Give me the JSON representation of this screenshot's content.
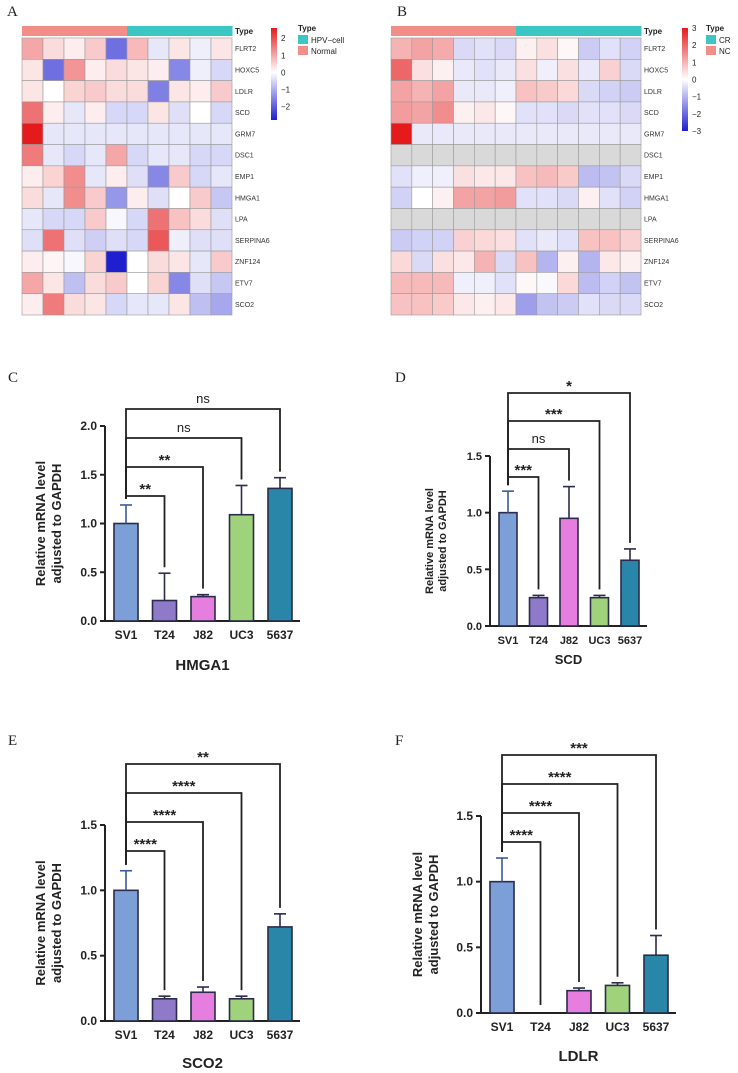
{
  "chart_data": [
    {
      "panel": "A",
      "type": "heatmap",
      "title": "",
      "rows": [
        "FLRT2",
        "HOXC5",
        "LDLR",
        "SCD",
        "GRM7",
        "DSC1",
        "EMP1",
        "HMGA1",
        "LPA",
        "SERPINA6",
        "ZNF124",
        "ETV7",
        "SCO2"
      ],
      "column_groups": [
        "Normal",
        "Normal",
        "Normal",
        "Normal",
        "Normal",
        "HPV-cell",
        "HPV-cell",
        "HPV-cell",
        "HPV-cell",
        "HPV-cell"
      ],
      "values": [
        [
          1.0,
          0.4,
          0.2,
          0.6,
          -1.8,
          0.8,
          -0.3,
          0.3,
          -0.2,
          0.3
        ],
        [
          0.3,
          -1.8,
          1.2,
          0.2,
          0.4,
          0.3,
          0.2,
          -1.5,
          -0.2,
          -0.5
        ],
        [
          0.3,
          0.0,
          0.5,
          0.6,
          0.4,
          0.4,
          -1.6,
          0.3,
          0.2,
          0.6
        ],
        [
          1.6,
          0.2,
          -0.3,
          0.2,
          -0.5,
          -0.5,
          0.3,
          -0.4,
          0.0,
          -0.5
        ],
        [
          2.6,
          -0.3,
          -0.3,
          -0.3,
          -0.3,
          -0.3,
          -0.3,
          -0.3,
          -0.3,
          -0.3
        ],
        [
          1.5,
          -0.3,
          -0.5,
          -0.3,
          1.0,
          -0.5,
          -0.3,
          -0.3,
          -0.5,
          -0.5
        ],
        [
          0.2,
          0.5,
          1.3,
          -0.3,
          0.2,
          -0.4,
          -1.5,
          0.6,
          -0.5,
          -0.3
        ],
        [
          0.4,
          -0.3,
          1.3,
          0.6,
          -1.3,
          0.2,
          -0.4,
          0.0,
          0.6,
          -0.7
        ],
        [
          -0.3,
          -0.5,
          -0.5,
          0.6,
          -0.1,
          -0.5,
          1.6,
          0.7,
          0.4,
          -0.4
        ],
        [
          -0.4,
          1.6,
          -0.4,
          -0.6,
          -0.4,
          -0.5,
          1.9,
          -0.2,
          -0.4,
          -0.4
        ],
        [
          0.2,
          0.1,
          -0.1,
          0.5,
          -2.8,
          0.0,
          0.4,
          0.3,
          -0.3,
          0.6
        ],
        [
          1.0,
          0.3,
          -0.8,
          0.4,
          0.6,
          0.0,
          0.5,
          -1.5,
          -0.4,
          -0.7
        ],
        [
          0.2,
          1.5,
          0.4,
          0.3,
          -0.5,
          -0.3,
          -0.3,
          0.3,
          -0.8,
          -1.1
        ]
      ],
      "legend": {
        "title": "Type",
        "entries": [
          {
            "label": "HPV−cell",
            "color": "#3cc7c4"
          },
          {
            "label": "Normal",
            "color": "#f28d87"
          }
        ]
      },
      "colorbar": {
        "min": -2.8,
        "max": 2.6,
        "ticks": [
          "2",
          "1",
          "0",
          "−1",
          "−2"
        ],
        "tick_values": [
          2,
          1,
          0,
          -1,
          -2
        ]
      },
      "type_label": "Type"
    },
    {
      "panel": "B",
      "type": "heatmap",
      "title": "",
      "rows": [
        "FLRT2",
        "HOXC5",
        "LDLR",
        "SCD",
        "GRM7",
        "DSC1",
        "EMP1",
        "HMGA1",
        "LPA",
        "SERPINA6",
        "ZNF124",
        "ETV7",
        "SCO2"
      ],
      "column_groups": [
        "NC",
        "NC",
        "NC",
        "NC",
        "NC",
        "NC",
        "CR",
        "CR",
        "CR",
        "CR",
        "CR",
        "CR"
      ],
      "values": [
        [
          1.0,
          1.2,
          1.1,
          -0.5,
          -0.4,
          -0.5,
          0.2,
          0.4,
          0.1,
          -0.7,
          -0.4,
          -0.6
        ],
        [
          2.0,
          0.4,
          0.2,
          -0.3,
          -0.4,
          -0.3,
          0.4,
          -0.2,
          0.4,
          -0.3,
          0.6,
          -0.5
        ],
        [
          1.2,
          1.0,
          1.2,
          -0.3,
          -0.3,
          -0.2,
          0.8,
          0.7,
          0.5,
          -0.5,
          -0.6,
          -0.7
        ],
        [
          1.3,
          1.2,
          1.5,
          0.2,
          0.3,
          0.1,
          -0.4,
          -0.4,
          -0.5,
          -0.4,
          -0.4,
          -0.5
        ],
        [
          3.0,
          -0.3,
          -0.3,
          -0.3,
          -0.3,
          -0.3,
          -0.3,
          -0.3,
          -0.3,
          -0.3,
          -0.3,
          -0.3
        ],
        [
          null,
          null,
          null,
          null,
          null,
          null,
          null,
          null,
          null,
          null,
          null,
          null
        ],
        [
          -0.4,
          -0.2,
          -0.2,
          0.4,
          0.3,
          0.3,
          0.8,
          0.9,
          0.7,
          -0.9,
          -0.8,
          -0.5
        ],
        [
          -0.6,
          0.0,
          0.2,
          1.2,
          1.2,
          1.3,
          -0.4,
          -0.4,
          -0.5,
          0.2,
          -0.4,
          -0.6
        ],
        [
          null,
          null,
          null,
          null,
          null,
          null,
          null,
          null,
          null,
          null,
          null,
          null
        ],
        [
          -0.7,
          -0.6,
          -0.6,
          0.6,
          0.5,
          0.4,
          -0.4,
          -0.3,
          -0.4,
          0.8,
          0.8,
          0.6
        ],
        [
          0.5,
          -0.5,
          0.4,
          0.3,
          1.0,
          -0.5,
          0.8,
          -1.0,
          0.2,
          -1.0,
          0.3,
          0.2
        ],
        [
          0.9,
          0.9,
          0.9,
          -0.2,
          -0.2,
          -0.4,
          0.1,
          -0.1,
          0.5,
          -0.9,
          -0.6,
          -0.8
        ],
        [
          0.8,
          0.8,
          0.7,
          0.3,
          0.2,
          0.3,
          -1.3,
          -0.8,
          -0.7,
          -0.4,
          -0.5,
          -0.5
        ]
      ],
      "legend": {
        "title": "Type",
        "entries": [
          {
            "label": "CR",
            "color": "#3cc7c4"
          },
          {
            "label": "NC",
            "color": "#f28d87"
          }
        ]
      },
      "colorbar": {
        "min": -3,
        "max": 3,
        "ticks": [
          "3",
          "2",
          "1",
          "0",
          "−1",
          "−2",
          "−3"
        ],
        "tick_values": [
          3,
          2,
          1,
          0,
          -1,
          -2,
          -3
        ]
      },
      "type_label": "Type"
    },
    {
      "panel": "C",
      "type": "bar",
      "xlabel": "HMGA1",
      "ylabel": "Relative mRNA level adjusted to GAPDH",
      "categories": [
        "SV1",
        "T24",
        "J82",
        "UC3",
        "5637"
      ],
      "values": [
        1.0,
        0.21,
        0.25,
        1.09,
        1.36
      ],
      "errors": [
        0.19,
        0.28,
        0.02,
        0.3,
        0.11
      ],
      "colors": [
        "#7b9fd6",
        "#8e7ac8",
        "#e67ee0",
        "#9fd27a",
        "#2a86a8"
      ],
      "ylim": [
        0,
        2.0
      ],
      "yticks": [
        "0.0",
        "0.5",
        "1.0",
        "1.5",
        "2.0"
      ],
      "significance": [
        {
          "to": 1,
          "label": "**"
        },
        {
          "to": 2,
          "label": "**"
        },
        {
          "to": 3,
          "label": "ns"
        },
        {
          "to": 4,
          "label": "ns"
        }
      ]
    },
    {
      "panel": "D",
      "type": "bar",
      "xlabel": "SCD",
      "ylabel": "Relative mRNA level adjusted to GAPDH",
      "categories": [
        "SV1",
        "T24",
        "J82",
        "UC3",
        "5637"
      ],
      "values": [
        1.0,
        0.25,
        0.95,
        0.25,
        0.58
      ],
      "errors": [
        0.19,
        0.02,
        0.28,
        0.02,
        0.1
      ],
      "colors": [
        "#7b9fd6",
        "#8e7ac8",
        "#e67ee0",
        "#9fd27a",
        "#2a86a8"
      ],
      "ylim": [
        0,
        1.5
      ],
      "yticks": [
        "0.0",
        "0.5",
        "1.0",
        "1.5"
      ],
      "significance": [
        {
          "to": 1,
          "label": "***"
        },
        {
          "to": 2,
          "label": "ns"
        },
        {
          "to": 3,
          "label": "***"
        },
        {
          "to": 4,
          "label": "*"
        }
      ]
    },
    {
      "panel": "E",
      "type": "bar",
      "xlabel": "SCO2",
      "ylabel": "Relative mRNA level adjusted to GAPDH",
      "categories": [
        "SV1",
        "T24",
        "J82",
        "UC3",
        "5637"
      ],
      "values": [
        1.0,
        0.17,
        0.22,
        0.17,
        0.72
      ],
      "errors": [
        0.15,
        0.02,
        0.04,
        0.02,
        0.1
      ],
      "colors": [
        "#7b9fd6",
        "#8e7ac8",
        "#e67ee0",
        "#9fd27a",
        "#2a86a8"
      ],
      "ylim": [
        0,
        1.5
      ],
      "yticks": [
        "0.0",
        "0.5",
        "1.0",
        "1.5"
      ],
      "significance": [
        {
          "to": 1,
          "label": "****"
        },
        {
          "to": 2,
          "label": "****"
        },
        {
          "to": 3,
          "label": "****"
        },
        {
          "to": 4,
          "label": "**"
        }
      ]
    },
    {
      "panel": "F",
      "type": "bar",
      "xlabel": "LDLR",
      "ylabel": "Relative mRNA level adjusted to GAPDH",
      "categories": [
        "SV1",
        "T24",
        "J82",
        "UC3",
        "5637"
      ],
      "values": [
        1.0,
        0.0,
        0.17,
        0.21,
        0.44
      ],
      "errors": [
        0.18,
        0.0,
        0.02,
        0.02,
        0.15
      ],
      "colors": [
        "#7b9fd6",
        "#8e7ac8",
        "#e67ee0",
        "#9fd27a",
        "#2a86a8"
      ],
      "ylim": [
        0,
        1.5
      ],
      "yticks": [
        "0.0",
        "0.5",
        "1.0",
        "1.5"
      ],
      "significance": [
        {
          "to": 1,
          "label": "****"
        },
        {
          "to": 2,
          "label": "****"
        },
        {
          "to": 3,
          "label": "****"
        },
        {
          "to": 4,
          "label": "***"
        }
      ]
    }
  ]
}
